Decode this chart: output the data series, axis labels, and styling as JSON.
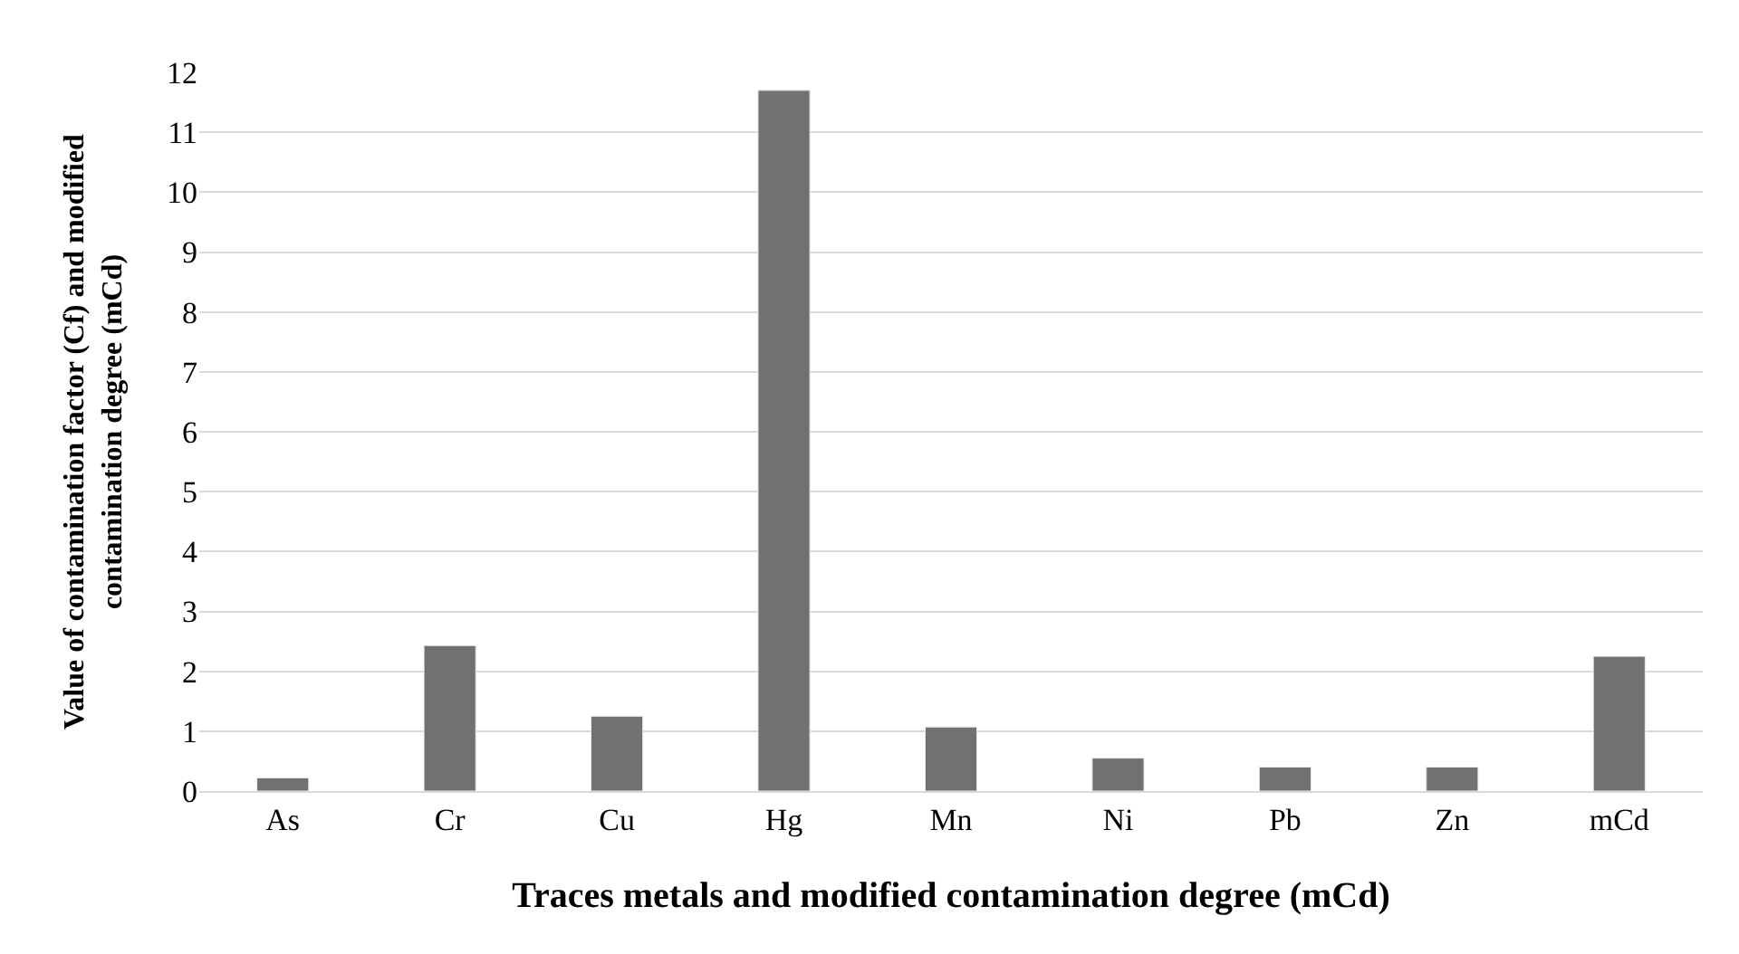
{
  "chart_data": {
    "type": "bar",
    "xlabel": "Traces metals and modified contamination degree (mCd)",
    "ylabel": "Value of contamination factor (Cf) and modified contamination degree (mCd)",
    "categories": [
      "As",
      "Cr",
      "Cu",
      "Hg",
      "Mn",
      "Ni",
      "Pb",
      "Zn",
      "mCd"
    ],
    "values": [
      0.22,
      2.43,
      1.25,
      11.7,
      1.07,
      0.55,
      0.4,
      0.4,
      2.25
    ],
    "color": "#737070",
    "ylim": [
      0,
      12
    ],
    "yticks": [
      0,
      1,
      2,
      3,
      4,
      5,
      6,
      7,
      8,
      9,
      10,
      11,
      12
    ],
    "grid": "y"
  }
}
